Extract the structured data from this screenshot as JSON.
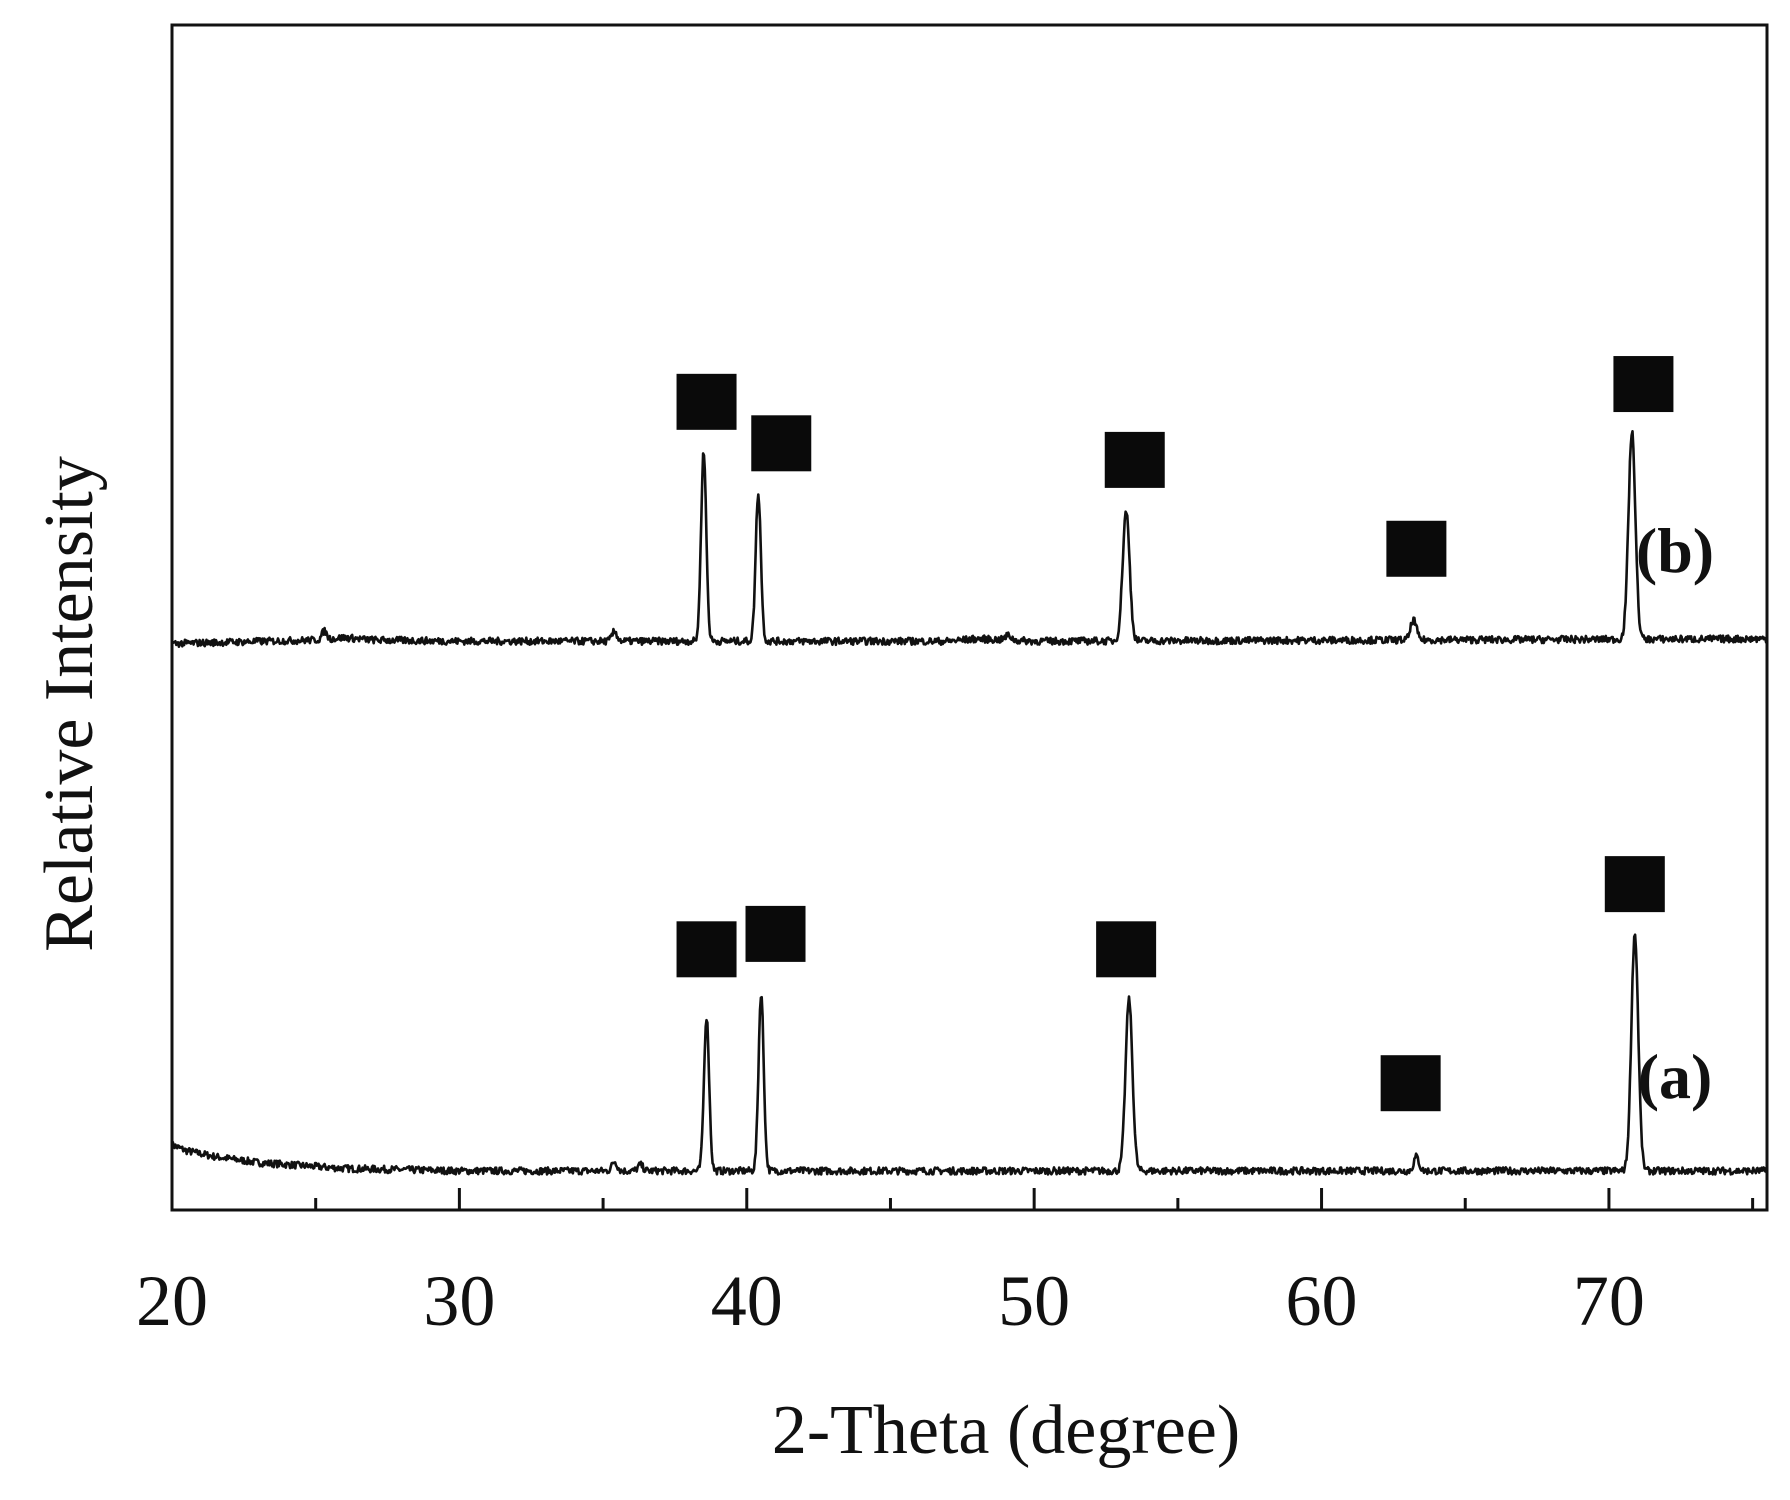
{
  "chart_data": {
    "type": "line",
    "title": "",
    "xlabel": "2-Theta (degree)",
    "ylabel": "Relative Intensity",
    "xlim": [
      20,
      75.5
    ],
    "ylim": [
      0,
      1
    ],
    "x_ticks": [
      "20",
      "30",
      "40",
      "50",
      "60",
      "70"
    ],
    "x_tick_values": [
      20,
      30,
      40,
      50,
      60,
      70
    ],
    "x_minor_ticks": [
      25,
      35,
      45,
      55,
      65,
      75
    ],
    "y_ticks": [],
    "grid": false,
    "legend": "none",
    "marker_symbol": "■",
    "series": [
      {
        "name": "(a)",
        "baseline": 0.04,
        "background": [
          [
            20,
            0.055
          ],
          [
            20.5,
            0.05
          ],
          [
            21.5,
            0.045
          ],
          [
            23,
            0.04
          ],
          [
            26,
            0.035
          ],
          [
            30,
            0.033
          ],
          [
            40,
            0.033
          ],
          [
            75.5,
            0.033
          ]
        ],
        "peaks": [
          {
            "x": 35.4,
            "height": 0.008,
            "width": 0.09
          },
          {
            "x": 36.3,
            "height": 0.005,
            "width": 0.09
          },
          {
            "x": 38.6,
            "height": 0.13,
            "width": 0.09,
            "marker": true
          },
          {
            "x": 40.5,
            "height": 0.15,
            "width": 0.09,
            "marker": true
          },
          {
            "x": 53.3,
            "height": 0.145,
            "width": 0.12,
            "marker": true
          },
          {
            "x": 63.3,
            "height": 0.012,
            "width": 0.09,
            "marker": true
          },
          {
            "x": 70.9,
            "height": 0.2,
            "width": 0.12,
            "marker": true
          }
        ],
        "marker_levels": [
          0.22,
          0.233,
          0.22,
          0.107,
          0.275
        ]
      },
      {
        "name": "(b)",
        "baseline": 0.48,
        "background": [
          [
            20,
            0.478
          ],
          [
            25,
            0.481
          ],
          [
            26,
            0.483
          ],
          [
            27,
            0.481
          ],
          [
            30,
            0.48
          ],
          [
            47,
            0.48
          ],
          [
            48,
            0.482
          ],
          [
            50,
            0.48
          ],
          [
            75.5,
            0.482
          ]
        ],
        "peaks": [
          {
            "x": 25.3,
            "height": 0.007,
            "width": 0.08
          },
          {
            "x": 35.4,
            "height": 0.008,
            "width": 0.09
          },
          {
            "x": 38.5,
            "height": 0.16,
            "width": 0.09,
            "marker": true
          },
          {
            "x": 40.4,
            "height": 0.125,
            "width": 0.09,
            "marker": true
          },
          {
            "x": 49.1,
            "height": 0.004,
            "width": 0.1
          },
          {
            "x": 53.2,
            "height": 0.11,
            "width": 0.12,
            "marker": true
          },
          {
            "x": 63.2,
            "height": 0.017,
            "width": 0.1,
            "marker": true
          },
          {
            "x": 70.8,
            "height": 0.175,
            "width": 0.12,
            "marker": true
          }
        ],
        "marker_levels": [
          0.682,
          0.647,
          0.633,
          0.558,
          0.697
        ]
      }
    ],
    "marker_positions_x": [
      [
        38.6,
        41.0,
        53.2,
        63.1,
        70.9
      ],
      [
        38.6,
        41.2,
        53.5,
        63.3,
        71.2
      ]
    ]
  }
}
